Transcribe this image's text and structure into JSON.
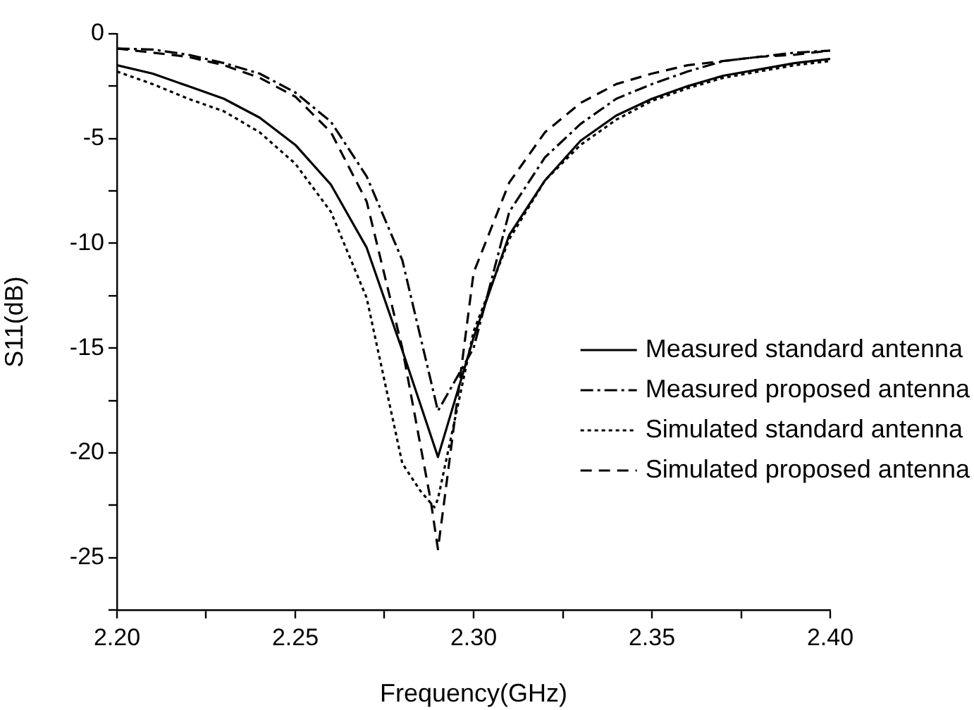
{
  "chart_data": {
    "type": "line",
    "xlabel": "Frequency(GHz)",
    "ylabel": "S11(dB)",
    "xlim": [
      2.2,
      2.4
    ],
    "ylim": [
      -27.5,
      0
    ],
    "xticks": [
      {
        "value": 2.2,
        "label": "2.20"
      },
      {
        "value": 2.225,
        "label": null
      },
      {
        "value": 2.25,
        "label": "2.25"
      },
      {
        "value": 2.275,
        "label": null
      },
      {
        "value": 2.3,
        "label": "2.30"
      },
      {
        "value": 2.325,
        "label": null
      },
      {
        "value": 2.35,
        "label": "2.35"
      },
      {
        "value": 2.375,
        "label": null
      },
      {
        "value": 2.4,
        "label": "2.40"
      }
    ],
    "yticks": [
      {
        "value": -27.5,
        "label": null
      },
      -25,
      {
        "value": -22.5,
        "label": null
      },
      -20,
      {
        "value": -17.5,
        "label": null
      },
      -15,
      {
        "value": -12.5,
        "label": null
      },
      -10,
      {
        "value": -7.5,
        "label": null
      },
      -5,
      {
        "value": -2.5,
        "label": null
      },
      0
    ],
    "grid": false,
    "legend": "right",
    "marker": "none",
    "series": [
      {
        "name": "Measured standard antenna",
        "color": "#000000",
        "line_style": "solid",
        "x": [
          2.2,
          2.21,
          2.22,
          2.23,
          2.24,
          2.25,
          2.26,
          2.27,
          2.28,
          2.29,
          2.3,
          2.31,
          2.32,
          2.33,
          2.34,
          2.35,
          2.36,
          2.37,
          2.38,
          2.39,
          2.4
        ],
        "values": [
          -1.5,
          -1.9,
          -2.5,
          -3.1,
          -4.0,
          -5.3,
          -7.2,
          -10.2,
          -15.1,
          -20.2,
          -14.5,
          -9.6,
          -7.0,
          -5.1,
          -3.9,
          -3.1,
          -2.5,
          -2.0,
          -1.7,
          -1.4,
          -1.2
        ]
      },
      {
        "name": "Measured proposed antenna",
        "color": "#000000",
        "line_style": "dashdot",
        "x": [
          2.2,
          2.21,
          2.22,
          2.23,
          2.24,
          2.25,
          2.26,
          2.27,
          2.28,
          2.29,
          2.3,
          2.31,
          2.32,
          2.33,
          2.34,
          2.35,
          2.36,
          2.37,
          2.38,
          2.39,
          2.4
        ],
        "values": [
          -0.7,
          -0.75,
          -1.0,
          -1.4,
          -1.9,
          -2.8,
          -4.2,
          -6.8,
          -10.8,
          -18.0,
          -15.0,
          -8.5,
          -5.9,
          -4.3,
          -3.1,
          -2.4,
          -1.8,
          -1.3,
          -1.1,
          -0.9,
          -0.8
        ]
      },
      {
        "name": "Simulated standard antenna",
        "color": "#000000",
        "line_style": "dotted",
        "x": [
          2.2,
          2.21,
          2.22,
          2.23,
          2.24,
          2.25,
          2.26,
          2.27,
          2.28,
          2.285,
          2.289,
          2.29,
          2.3,
          2.31,
          2.32,
          2.33,
          2.34,
          2.35,
          2.36,
          2.37,
          2.38,
          2.39,
          2.4
        ],
        "values": [
          -1.8,
          -2.4,
          -3.1,
          -3.7,
          -4.7,
          -6.2,
          -8.5,
          -12.6,
          -20.5,
          -21.8,
          -22.6,
          -22.2,
          -14.2,
          -9.8,
          -7.0,
          -5.3,
          -4.1,
          -3.2,
          -2.6,
          -2.1,
          -1.8,
          -1.5,
          -1.3
        ]
      },
      {
        "name": "Simulated proposed antenna",
        "color": "#000000",
        "line_style": "dashed",
        "x": [
          2.2,
          2.21,
          2.22,
          2.23,
          2.24,
          2.25,
          2.26,
          2.27,
          2.28,
          2.288,
          2.29,
          2.292,
          2.3,
          2.31,
          2.32,
          2.33,
          2.34,
          2.35,
          2.36,
          2.37,
          2.38,
          2.39,
          2.4
        ],
        "values": [
          -0.7,
          -0.9,
          -1.1,
          -1.5,
          -2.1,
          -3.0,
          -4.7,
          -8.0,
          -15.0,
          -22.3,
          -24.6,
          -22.0,
          -11.4,
          -7.1,
          -4.7,
          -3.3,
          -2.4,
          -1.9,
          -1.5,
          -1.3,
          -1.1,
          -1.0,
          -0.8
        ]
      }
    ]
  }
}
